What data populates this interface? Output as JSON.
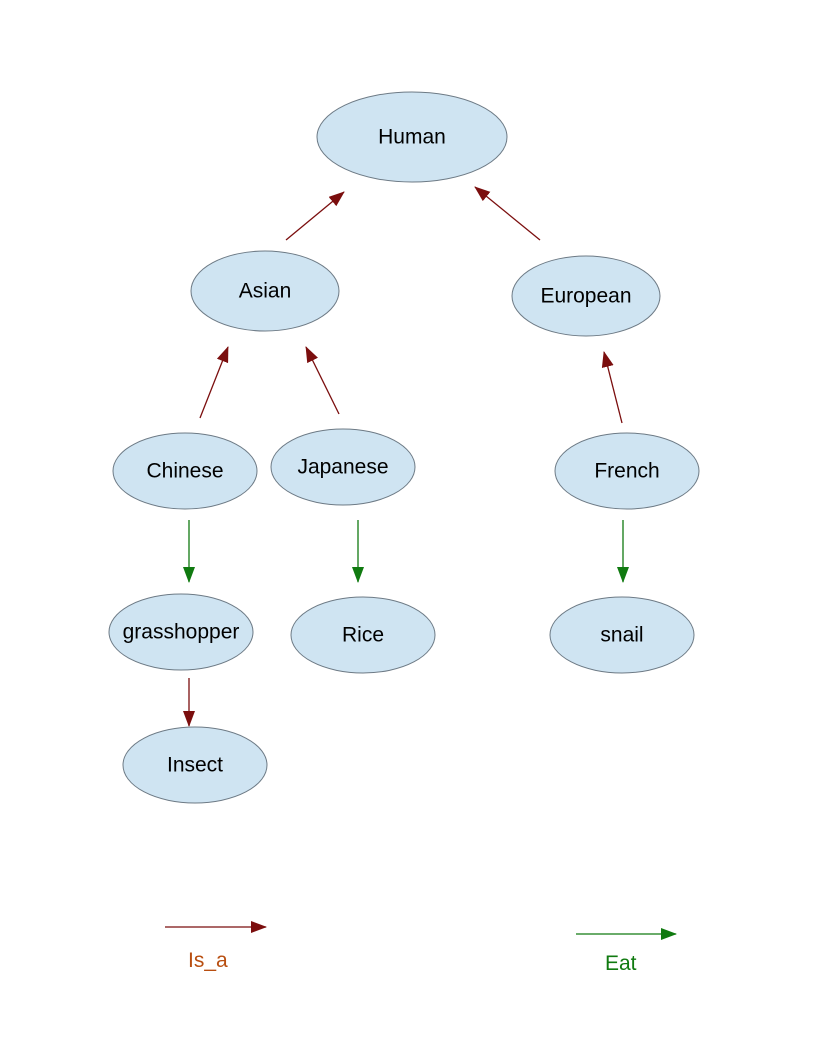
{
  "colors": {
    "node_fill": "#cfe4f2",
    "node_stroke": "#6d7a85",
    "is_a": "#7b0e0e",
    "eat": "#107a10",
    "is_a_label": "#b84e10",
    "eat_label": "#107a10"
  },
  "nodes": {
    "human": "Human",
    "asian": "Asian",
    "european": "European",
    "chinese": "Chinese",
    "japanese": "Japanese",
    "french": "French",
    "grasshopper": "grasshopper",
    "rice": "Rice",
    "snail": "snail",
    "insect": "Insect"
  },
  "edges": [
    {
      "from": "asian",
      "to": "human",
      "relation": "is_a"
    },
    {
      "from": "european",
      "to": "human",
      "relation": "is_a"
    },
    {
      "from": "chinese",
      "to": "asian",
      "relation": "is_a"
    },
    {
      "from": "japanese",
      "to": "asian",
      "relation": "is_a"
    },
    {
      "from": "french",
      "to": "european",
      "relation": "is_a"
    },
    {
      "from": "chinese",
      "to": "grasshopper",
      "relation": "eat"
    },
    {
      "from": "japanese",
      "to": "rice",
      "relation": "eat"
    },
    {
      "from": "french",
      "to": "snail",
      "relation": "eat"
    },
    {
      "from": "grasshopper",
      "to": "insect",
      "relation": "is_a"
    }
  ],
  "legend": {
    "is_a_label": "Is_a",
    "eat_label": "Eat"
  }
}
